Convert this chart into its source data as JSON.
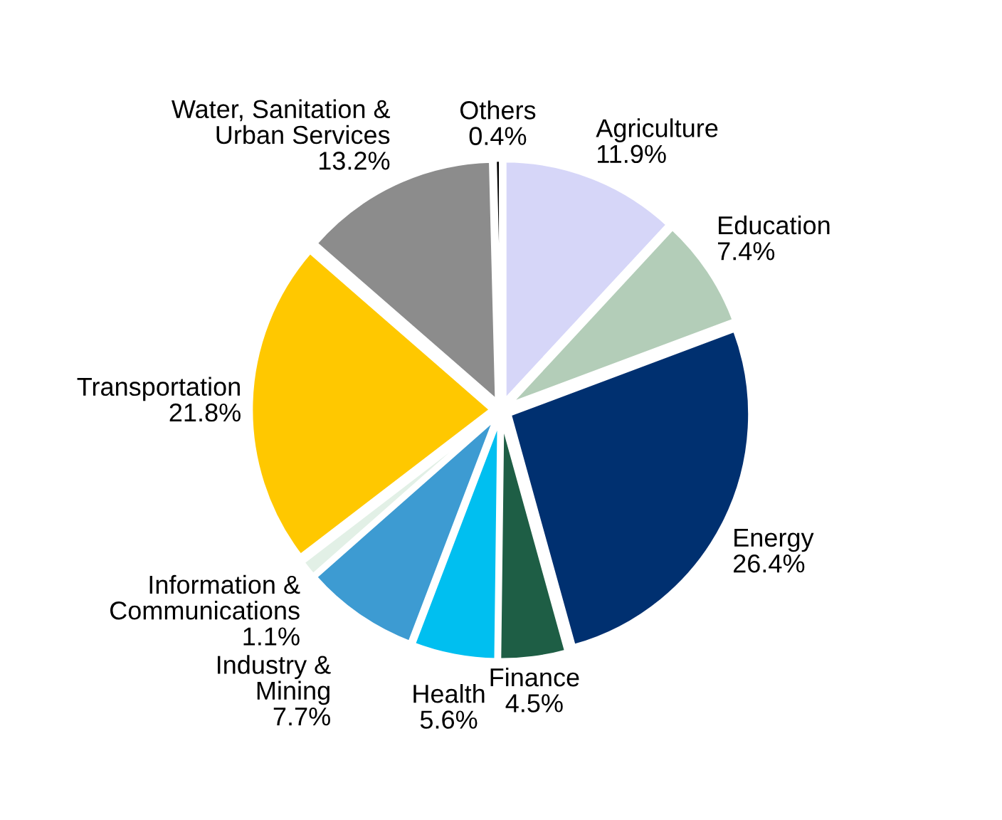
{
  "chart_data": {
    "type": "pie",
    "categories": [
      "Agriculture",
      "Education",
      "Energy",
      "Finance",
      "Health",
      "Industry &\nMining",
      "Information &\nCommunications",
      "Transportation",
      "Water, Sanitation &\nUrban Services",
      "Others"
    ],
    "values": [
      11.9,
      7.4,
      26.4,
      4.5,
      5.6,
      7.7,
      1.1,
      21.8,
      13.2,
      0.4
    ],
    "value_labels": [
      "11.9%",
      "7.4%",
      "26.4%",
      "4.5%",
      "5.6%",
      "7.7%",
      "1.1%",
      "21.8%",
      "13.2%",
      "0.4%"
    ],
    "colors": [
      "#d6d6f8",
      "#b3cdb8",
      "#003070",
      "#1e5e45",
      "#00bff0",
      "#3d9bd2",
      "#e2f0e6",
      "#ffc800",
      "#8c8c8c",
      "#000000"
    ],
    "legend": false
  }
}
